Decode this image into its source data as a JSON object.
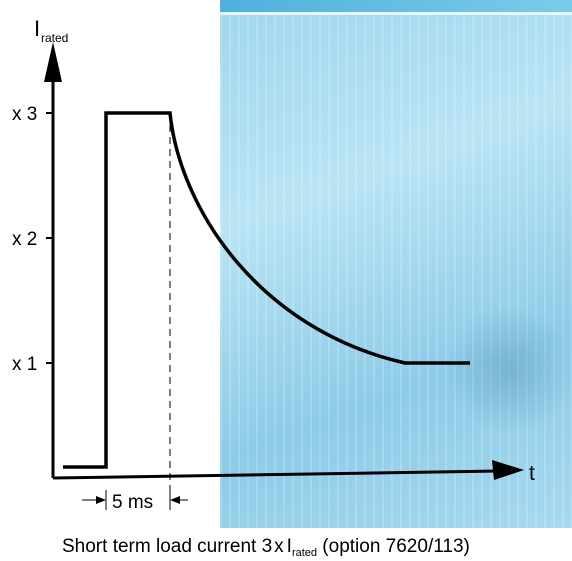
{
  "chart_data": {
    "type": "line",
    "ylabel_main": "I",
    "ylabel_sub": "rated",
    "xlabel": "t",
    "y_ticks": [
      {
        "value": 1,
        "label": "x 1"
      },
      {
        "value": 2,
        "label": "x 2"
      },
      {
        "value": 3,
        "label": "x 3"
      }
    ],
    "duration_label": "5 ms",
    "ylim": [
      0,
      3
    ],
    "series": [
      {
        "points": [
          [
            0,
            0.02
          ],
          [
            1,
            0.02
          ],
          [
            1,
            3
          ],
          [
            2,
            3
          ],
          [
            2.2,
            2.4
          ],
          [
            3,
            1.7
          ],
          [
            4,
            1.25
          ],
          [
            5,
            1.0
          ],
          [
            6,
            1.0
          ]
        ]
      }
    ]
  },
  "caption": {
    "prefix": "Short term load current 3",
    "x": "x",
    "I": "I",
    "sub": "rated",
    "suffix": "(option 7620/113)"
  }
}
